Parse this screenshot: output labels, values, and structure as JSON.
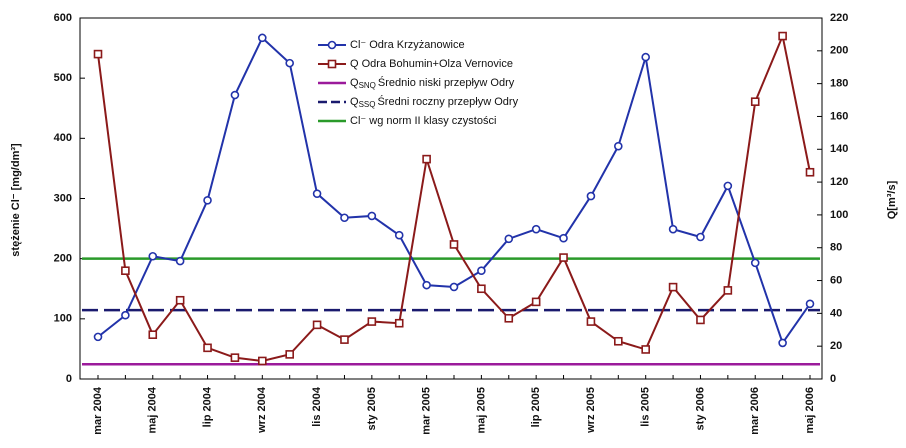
{
  "chart_data": {
    "type": "line",
    "y_label": "stężenie Cl⁻ [mg/dm³]",
    "y2_label": "Q[m³/s]",
    "categories": [
      "mar 2004",
      null,
      "maj 2004",
      null,
      "lip 2004",
      null,
      "wrz 2004",
      null,
      "lis 2004",
      null,
      "sty 2005",
      null,
      "mar 2005",
      null,
      "maj 2005",
      null,
      "lip 2005",
      null,
      "wrz 2005",
      null,
      "lis 2005",
      null,
      "sty 2006",
      null,
      "mar 2006",
      null,
      "maj 2006"
    ],
    "ylim": [
      0,
      600
    ],
    "yticks": [
      0,
      100,
      200,
      300,
      400,
      500,
      600
    ],
    "y2lim": [
      0,
      220
    ],
    "y2ticks": [
      0,
      20,
      40,
      60,
      80,
      100,
      120,
      140,
      160,
      180,
      200,
      220
    ],
    "series": [
      {
        "name": "Cl⁻ Odra Krzyżanowice",
        "color": "#2233aa",
        "marker": "circle",
        "values": [
          70,
          106,
          204,
          196,
          297,
          472,
          567,
          525,
          308,
          268,
          271,
          239,
          156,
          153,
          180,
          233,
          249,
          234,
          304,
          387,
          535,
          249,
          236,
          321,
          193,
          60,
          125
        ]
      },
      {
        "name": "Q Odra Bohumin+Olza Vernovice",
        "color": "#8b1a1a",
        "marker": "square",
        "axis": "y2",
        "values": [
          198,
          66,
          27,
          48,
          19,
          13,
          11,
          15,
          33,
          24,
          35,
          34,
          134,
          82,
          55,
          37,
          47,
          74,
          35,
          23,
          18,
          56,
          36,
          54,
          169,
          209,
          126
        ]
      }
    ],
    "reference_lines": [
      {
        "symbol": "Q",
        "symbol_sub": "SNQ",
        "name": "Średnio niski przepływ Odry",
        "color": "#9b1a9b",
        "axis": "y2",
        "value": 9,
        "dash": false
      },
      {
        "symbol": "Q",
        "symbol_sub": "SSQ",
        "name": "Średni roczny przepływ Odry",
        "color": "#1a1a6e",
        "axis": "y2",
        "value": 42,
        "dash": true
      },
      {
        "name": "Cl⁻ wg norm II klasy czystości",
        "color": "#2a9a2a",
        "axis": "y",
        "value": 200,
        "dash": false
      }
    ]
  }
}
